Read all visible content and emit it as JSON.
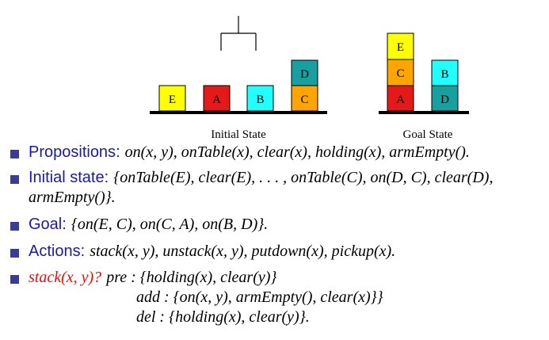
{
  "diagram": {
    "initial": {
      "caption": "Initial State",
      "blocks": [
        {
          "label": "E",
          "color": "#ffff00"
        },
        {
          "label": "A",
          "color": "#e41a1a"
        },
        {
          "label": "B",
          "color": "#22ffff"
        },
        {
          "label": "D",
          "color": "#18a0a0"
        },
        {
          "label": "C",
          "color": "#ffa500"
        }
      ]
    },
    "goal": {
      "caption": "Goal State",
      "blocks": [
        {
          "label": "E",
          "color": "#ffff00"
        },
        {
          "label": "C",
          "color": "#ffa500"
        },
        {
          "label": "A",
          "color": "#e41a1a"
        },
        {
          "label": "B",
          "color": "#22ffff"
        },
        {
          "label": "D",
          "color": "#18a0a0"
        }
      ]
    }
  },
  "bullets": {
    "propositions": {
      "label": "Propositions",
      "text": "on(x, y), onTable(x), clear(x), holding(x), armEmpty()."
    },
    "initial": {
      "label": "Initial state",
      "line1": "{onTable(E), clear(E), . . . , onTable(C), on(D, C), clear(D),",
      "line2": "armEmpty()}."
    },
    "goal": {
      "label": "Goal",
      "text": "{on(E, C), on(C, A), on(B, D)}."
    },
    "actions": {
      "label": "Actions",
      "text": "stack(x, y), unstack(x, y), putdown(x), pickup(x)."
    },
    "stack": {
      "head": "stack(x, y)?",
      "pre": "pre : {holding(x), clear(y)}",
      "add": "add : {on(x, y), armEmpty(), clear(x)}}",
      "del": "del : {holding(x), clear(y)}."
    }
  }
}
